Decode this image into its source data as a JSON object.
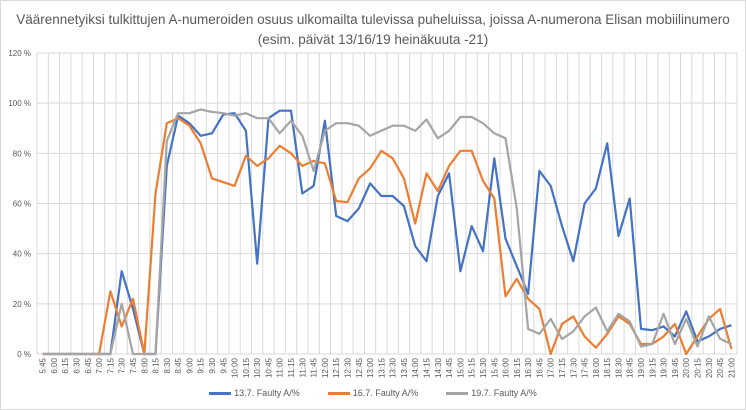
{
  "chart_data": {
    "type": "line",
    "title": "Väärennetyiksi tulkittujen A-numeroiden osuus ulkomailta tulevissa puheluissa, joissa A-numerona Elisan mobiilinumero (esim. päivät 13/16/19 heinäkuuta -21)",
    "xlabel": "",
    "ylabel": "",
    "ylim": [
      0,
      120
    ],
    "yticks": [
      "0 %",
      "20 %",
      "40 %",
      "60 %",
      "80 %",
      "100 %",
      "120 %"
    ],
    "grid": true,
    "legend": "bottom",
    "x": [
      "5:45",
      "6:00",
      "6:15",
      "6:30",
      "6:45",
      "7:00",
      "7:15",
      "7:30",
      "7:45",
      "8:00",
      "8:15",
      "8:30",
      "8:45",
      "9:00",
      "9:15",
      "9:30",
      "9:45",
      "10:00",
      "10:15",
      "10:30",
      "10:45",
      "11:00",
      "11:15",
      "11:30",
      "11:45",
      "12:00",
      "12:15",
      "12:30",
      "12:45",
      "13:00",
      "13:15",
      "13:30",
      "13:45",
      "14:00",
      "14:15",
      "14:30",
      "14:45",
      "15:00",
      "15:15",
      "15:30",
      "15:45",
      "16:00",
      "16:15",
      "16:30",
      "16:45",
      "17:00",
      "17:15",
      "17:30",
      "17:45",
      "18:00",
      "18:15",
      "18:30",
      "18:45",
      "19:00",
      "19:15",
      "19:30",
      "19:45",
      "20:00",
      "20:15",
      "20:30",
      "20:45",
      "21:00"
    ],
    "series": [
      {
        "name": "13.7. Faulty A/%",
        "color": "#4472c4",
        "values": [
          0,
          0,
          0,
          0,
          0,
          0,
          0,
          33,
          18,
          0,
          0,
          75,
          95,
          92,
          87,
          88,
          95.5,
          96,
          89,
          36,
          94,
          97,
          97,
          64,
          67,
          93,
          55,
          53,
          58,
          68,
          63,
          63,
          59,
          43,
          37,
          63,
          72,
          33,
          51,
          41,
          78,
          46,
          35,
          24,
          73,
          67,
          51,
          37,
          60,
          66,
          84,
          47,
          62,
          10,
          9.5,
          11,
          7,
          17,
          5,
          7,
          10,
          11.5
        ]
      },
      {
        "name": "16.7. Faulty A/%",
        "color": "#ed7d31",
        "values": [
          0,
          0,
          0,
          0,
          0,
          0,
          25,
          11,
          22,
          0,
          64,
          92,
          94,
          91,
          84,
          70,
          68.5,
          67,
          79,
          75,
          78,
          83,
          80,
          75,
          77,
          76,
          61,
          60.5,
          70,
          74,
          81,
          78,
          70,
          52,
          72,
          65,
          75,
          81,
          81,
          69,
          62,
          23,
          30,
          22,
          18,
          0,
          12,
          15,
          7,
          2.5,
          8,
          15,
          12,
          4,
          4,
          7,
          12,
          0,
          7,
          14,
          18,
          2
        ]
      },
      {
        "name": "19.7. Faulty A/%",
        "color": "#a5a5a5",
        "values": [
          0,
          0,
          0,
          0,
          0,
          0,
          0,
          20,
          0,
          0,
          0,
          85,
          96,
          96,
          97.5,
          96.5,
          96,
          95,
          96,
          94,
          94,
          88,
          93,
          87,
          73,
          89,
          92,
          92,
          91,
          87,
          89,
          91,
          91,
          89,
          93.5,
          86,
          89,
          94.5,
          94.5,
          92,
          88,
          86,
          58,
          10,
          8,
          14,
          6,
          9,
          15,
          18.5,
          9,
          16,
          13,
          3,
          4,
          16,
          4,
          14,
          3,
          15,
          6,
          4
        ]
      }
    ]
  }
}
